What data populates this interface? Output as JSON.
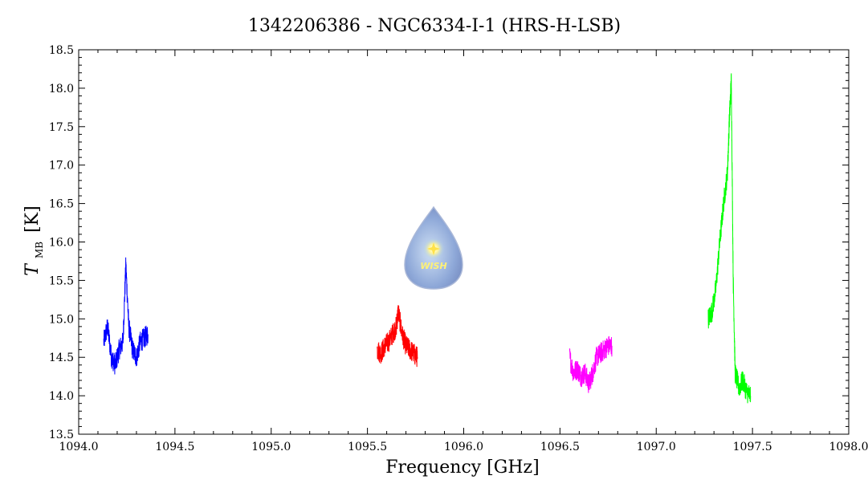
{
  "chart_data": {
    "type": "line",
    "title": "1342206386 - NGC6334-I-1 (HRS-H-LSB)",
    "xlabel": "Frequency [GHz]",
    "ylabel": {
      "symbol": "T",
      "subscript": "MB",
      "unit": "[K]"
    },
    "xlim": [
      1094.0,
      1098.0
    ],
    "ylim": [
      13.5,
      18.5
    ],
    "x_ticks": [
      "1094.0",
      "1094.5",
      "1095.0",
      "1095.5",
      "1096.0",
      "1096.5",
      "1097.0",
      "1097.5",
      "1098.0"
    ],
    "y_ticks": [
      "13.5",
      "14.0",
      "14.5",
      "15.0",
      "15.5",
      "16.0",
      "16.5",
      "17.0",
      "17.5",
      "18.0",
      "18.5"
    ],
    "grid": false,
    "series": [
      {
        "color": "#0000ff",
        "x": [
          1094.13,
          1094.15,
          1094.17,
          1094.19,
          1094.21,
          1094.23,
          1094.245,
          1094.26,
          1094.28,
          1094.3,
          1094.32,
          1094.34,
          1094.36
        ],
        "y": [
          14.7,
          14.9,
          14.5,
          14.4,
          14.6,
          14.7,
          15.7,
          14.9,
          14.6,
          14.5,
          14.7,
          14.75,
          14.8
        ]
      },
      {
        "color": "#ff0000",
        "x": [
          1095.55,
          1095.57,
          1095.59,
          1095.61,
          1095.63,
          1095.65,
          1095.66,
          1095.68,
          1095.7,
          1095.72,
          1095.74,
          1095.76
        ],
        "y": [
          14.6,
          14.55,
          14.65,
          14.7,
          14.8,
          14.9,
          15.1,
          14.8,
          14.65,
          14.6,
          14.55,
          14.5
        ]
      },
      {
        "color": "#ff00ff",
        "x": [
          1096.55,
          1096.57,
          1096.59,
          1096.61,
          1096.63,
          1096.65,
          1096.67,
          1096.69,
          1096.71,
          1096.73,
          1096.75,
          1096.77
        ],
        "y": [
          14.5,
          14.3,
          14.35,
          14.25,
          14.3,
          14.15,
          14.3,
          14.5,
          14.55,
          14.6,
          14.65,
          14.65
        ]
      },
      {
        "color": "#00ff00",
        "x": [
          1097.27,
          1097.29,
          1097.31,
          1097.33,
          1097.35,
          1097.37,
          1097.38,
          1097.39,
          1097.4,
          1097.41,
          1097.43,
          1097.45,
          1097.47,
          1097.49
        ],
        "y": [
          15.0,
          15.1,
          15.4,
          16.0,
          16.5,
          16.9,
          17.6,
          18.1,
          15.5,
          14.3,
          14.1,
          14.2,
          14.05,
          14.0
        ]
      }
    ]
  },
  "logo": {
    "text": "WISH"
  }
}
